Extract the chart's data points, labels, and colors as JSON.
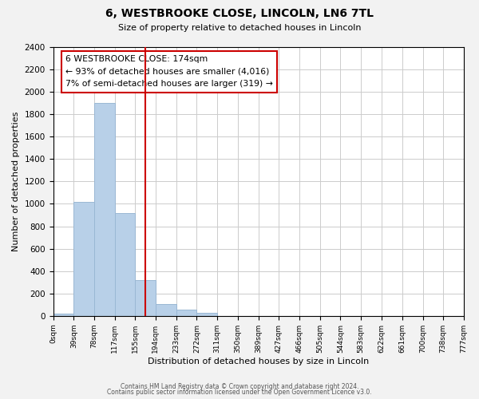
{
  "title": "6, WESTBROOKE CLOSE, LINCOLN, LN6 7TL",
  "subtitle": "Size of property relative to detached houses in Lincoln",
  "xlabel": "Distribution of detached houses by size in Lincoln",
  "ylabel": "Number of detached properties",
  "bin_edges": [
    0,
    39,
    78,
    117,
    155,
    194,
    233,
    272,
    311,
    350,
    389,
    427,
    466,
    505,
    544,
    583,
    622,
    661,
    700,
    738,
    777
  ],
  "bin_labels": [
    "0sqm",
    "39sqm",
    "78sqm",
    "117sqm",
    "155sqm",
    "194sqm",
    "233sqm",
    "272sqm",
    "311sqm",
    "350sqm",
    "389sqm",
    "427sqm",
    "466sqm",
    "505sqm",
    "544sqm",
    "583sqm",
    "622sqm",
    "661sqm",
    "700sqm",
    "738sqm",
    "777sqm"
  ],
  "counts": [
    20,
    1020,
    1900,
    920,
    320,
    105,
    55,
    25,
    0,
    0,
    0,
    0,
    0,
    0,
    0,
    0,
    0,
    0,
    0,
    0
  ],
  "bar_color": "#b8d0e8",
  "bar_edge_color": "#9ab8d4",
  "property_line_x": 174,
  "property_line_color": "#cc0000",
  "ann_line1": "6 WESTBROOKE CLOSE: 174sqm",
  "ann_line2": "← 93% of detached houses are smaller (4,016)",
  "ann_line3": "7% of semi-detached houses are larger (319) →",
  "ylim": [
    0,
    2400
  ],
  "yticks": [
    0,
    200,
    400,
    600,
    800,
    1000,
    1200,
    1400,
    1600,
    1800,
    2000,
    2200,
    2400
  ],
  "footer_line1": "Contains HM Land Registry data © Crown copyright and database right 2024.",
  "footer_line2": "Contains public sector information licensed under the Open Government Licence v3.0.",
  "background_color": "#f2f2f2",
  "plot_bg_color": "#ffffff",
  "grid_color": "#cccccc"
}
